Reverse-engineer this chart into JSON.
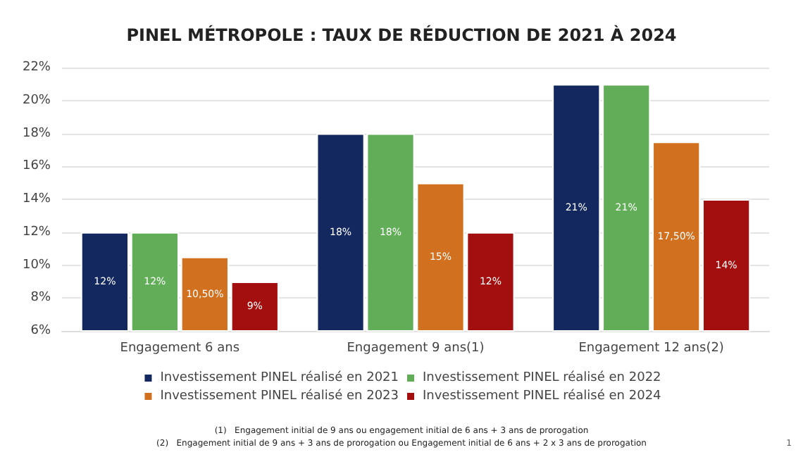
{
  "chart_data": {
    "type": "bar",
    "title": "PINEL MÉTROPOLE : TAUX DE RÉDUCTION DE 2021 À 2024",
    "categories": [
      "Engagement 6 ans",
      "Engagement 9 ans(1)",
      "Engagement 12 ans(2)"
    ],
    "series": [
      {
        "name": "Investissement PINEL réalisé en 2021",
        "color": "#13285f",
        "values": [
          12,
          18,
          21
        ],
        "value_labels": [
          "12%",
          "18%",
          "21%"
        ]
      },
      {
        "name": "Investissement PINEL réalisé en 2022",
        "color": "#62ad57",
        "values": [
          12,
          18,
          21
        ],
        "value_labels": [
          "12%",
          "18%",
          "21%"
        ]
      },
      {
        "name": "Investissement PINEL réalisé en 2023",
        "color": "#d1701f",
        "values": [
          10.5,
          15,
          17.5
        ],
        "value_labels": [
          "10,50%",
          "15%",
          "17,50%"
        ]
      },
      {
        "name": "Investissement PINEL réalisé en 2024",
        "color": "#a30f0f",
        "values": [
          9,
          12,
          14
        ],
        "value_labels": [
          "9%",
          "12%",
          "14%"
        ]
      }
    ],
    "ylim": [
      6,
      22
    ],
    "yticks": [
      {
        "value": 6,
        "label": "6%"
      },
      {
        "value": 8,
        "label": "8%"
      },
      {
        "value": 10,
        "label": "10%"
      },
      {
        "value": 12,
        "label": "12%"
      },
      {
        "value": 14,
        "label": "14%"
      },
      {
        "value": 16,
        "label": "16%"
      },
      {
        "value": 18,
        "label": "18%"
      },
      {
        "value": 20,
        "label": "20%"
      },
      {
        "value": 22,
        "label": "22%"
      }
    ],
    "grid": "y",
    "legend": "bottom",
    "annotations": [
      "(1)   Engagement initial de 9 ans ou engagement initial de 6 ans + 3 ans de prorogation",
      "(2)   Engagement initial de 9 ans + 3 ans de prorogation ou Engagement initial de 6 ans + 2 x 3 ans de prorogation",
      "1"
    ]
  }
}
